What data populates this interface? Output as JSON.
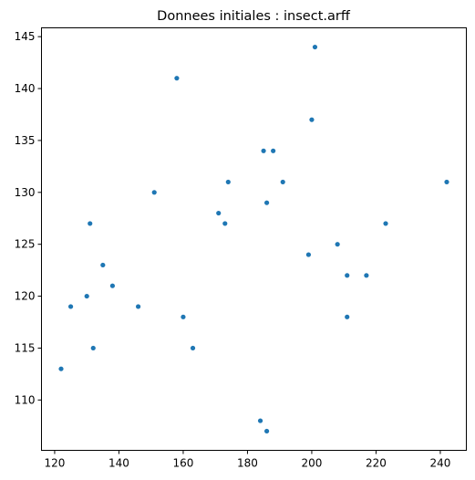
{
  "chart_data": {
    "type": "scatter",
    "title": "Donnees initiales : insect.arff",
    "xlabel": "",
    "ylabel": "",
    "xlim": [
      115.9,
      248.1
    ],
    "ylim": [
      105.15,
      145.85
    ],
    "xticks": [
      120,
      140,
      160,
      180,
      200,
      220,
      240
    ],
    "yticks": [
      110,
      115,
      120,
      125,
      130,
      135,
      140,
      145
    ],
    "grid": false,
    "point_color": "#1f77b4",
    "x": [
      122,
      125,
      130,
      131,
      132,
      135,
      138,
      146,
      151,
      158,
      160,
      163,
      171,
      173,
      174,
      184,
      185,
      186,
      186,
      188,
      191,
      199,
      200,
      201,
      208,
      211,
      211,
      217,
      223,
      242
    ],
    "y": [
      113,
      119,
      120,
      127,
      115,
      123,
      121,
      119,
      130,
      141,
      118,
      115,
      128,
      127,
      131,
      108,
      134,
      129,
      107,
      134,
      131,
      124,
      137,
      144,
      125,
      122,
      118,
      122,
      127,
      131
    ]
  }
}
